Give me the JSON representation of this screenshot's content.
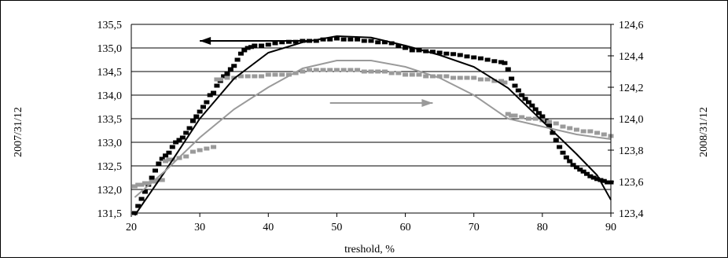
{
  "chart_data": {
    "type": "scatter",
    "xlabel": "treshold, %",
    "ylabel_left": "2007/31/12",
    "ylabel_right": "2008/31/12",
    "xlim": [
      20,
      90
    ],
    "ylim_left": [
      131.5,
      135.5
    ],
    "ylim_right": [
      123.4,
      124.6
    ],
    "x_ticks": [
      "20",
      "30",
      "40",
      "50",
      "60",
      "70",
      "80",
      "90"
    ],
    "y_left_ticks": [
      "131,5",
      "132,0",
      "132,5",
      "133,0",
      "133,5",
      "134,0",
      "134,5",
      "135,0",
      "135,5"
    ],
    "y_right_ticks": [
      "123,4",
      "123,6",
      "123,8",
      "124,0",
      "124,2",
      "124,4",
      "124,6"
    ],
    "grid": "horizontal",
    "colors": {
      "black_series": "#000000",
      "gray_series": "#9a9a9a"
    },
    "series": [
      {
        "axis": "left",
        "color": "#000000",
        "points": [
          [
            20.5,
            131.5
          ],
          [
            21,
            131.65
          ],
          [
            21.5,
            131.8
          ],
          [
            22,
            131.95
          ],
          [
            22.5,
            132.1
          ],
          [
            23,
            132.25
          ],
          [
            23.5,
            132.4
          ],
          [
            24,
            132.55
          ],
          [
            24.5,
            132.65
          ],
          [
            25,
            132.72
          ],
          [
            25.5,
            132.78
          ],
          [
            26,
            132.9
          ],
          [
            26.5,
            133.0
          ],
          [
            27,
            133.05
          ],
          [
            27.5,
            133.1
          ],
          [
            28,
            133.2
          ],
          [
            28.5,
            133.3
          ],
          [
            29,
            133.45
          ],
          [
            29.5,
            133.55
          ],
          [
            30,
            133.65
          ],
          [
            30.5,
            133.75
          ],
          [
            31,
            133.85
          ],
          [
            31.5,
            134.0
          ],
          [
            32,
            134.05
          ],
          [
            32.5,
            134.2
          ],
          [
            33,
            134.3
          ],
          [
            33.5,
            134.4
          ],
          [
            34,
            134.45
          ],
          [
            34.5,
            134.55
          ],
          [
            35,
            134.62
          ],
          [
            35.5,
            134.75
          ],
          [
            36,
            134.88
          ],
          [
            36.5,
            134.95
          ],
          [
            37,
            135.0
          ],
          [
            37.5,
            135.02
          ],
          [
            38,
            135.05
          ],
          [
            39,
            135.05
          ],
          [
            40,
            135.07
          ],
          [
            41,
            135.1
          ],
          [
            42,
            135.12
          ],
          [
            43,
            135.13
          ],
          [
            44,
            135.13
          ],
          [
            45,
            135.15
          ],
          [
            46,
            135.15
          ],
          [
            47,
            135.15
          ],
          [
            48,
            135.18
          ],
          [
            49,
            135.18
          ],
          [
            50,
            135.2
          ],
          [
            51,
            135.18
          ],
          [
            52,
            135.18
          ],
          [
            53,
            135.18
          ],
          [
            54,
            135.15
          ],
          [
            55,
            135.15
          ],
          [
            56,
            135.12
          ],
          [
            57,
            135.12
          ],
          [
            58,
            135.1
          ],
          [
            59,
            135.05
          ],
          [
            60,
            135.0
          ],
          [
            61,
            134.95
          ],
          [
            62,
            134.95
          ],
          [
            63,
            134.93
          ],
          [
            64,
            134.92
          ],
          [
            65,
            134.9
          ],
          [
            66,
            134.88
          ],
          [
            67,
            134.87
          ],
          [
            68,
            134.85
          ],
          [
            69,
            134.82
          ],
          [
            70,
            134.8
          ],
          [
            71,
            134.78
          ],
          [
            72,
            134.75
          ],
          [
            73,
            134.72
          ],
          [
            74,
            134.7
          ],
          [
            74.5,
            134.68
          ],
          [
            75,
            134.55
          ],
          [
            75.5,
            134.35
          ],
          [
            76,
            134.2
          ],
          [
            76.5,
            134.1
          ],
          [
            77,
            134.0
          ],
          [
            77.5,
            133.92
          ],
          [
            78,
            133.85
          ],
          [
            78.5,
            133.78
          ],
          [
            79,
            133.7
          ],
          [
            79.5,
            133.62
          ],
          [
            80,
            133.55
          ],
          [
            80.5,
            133.45
          ],
          [
            81,
            133.35
          ],
          [
            81.5,
            133.2
          ],
          [
            82,
            133.05
          ],
          [
            82.5,
            132.9
          ],
          [
            83,
            132.78
          ],
          [
            83.5,
            132.68
          ],
          [
            84,
            132.6
          ],
          [
            84.5,
            132.52
          ],
          [
            85,
            132.47
          ],
          [
            85.5,
            132.42
          ],
          [
            86,
            132.38
          ],
          [
            86.5,
            132.33
          ],
          [
            87,
            132.28
          ],
          [
            87.5,
            132.25
          ],
          [
            88,
            132.22
          ],
          [
            88.5,
            132.2
          ],
          [
            89,
            132.18
          ],
          [
            89.5,
            132.15
          ],
          [
            90,
            132.15
          ]
        ]
      },
      {
        "axis": "right",
        "color": "#9a9a9a",
        "points": [
          [
            20.5,
            123.57
          ],
          [
            21,
            123.58
          ],
          [
            21.5,
            123.58
          ],
          [
            22,
            123.59
          ],
          [
            22.5,
            123.59
          ],
          [
            23,
            123.6
          ],
          [
            23.5,
            123.6
          ],
          [
            24,
            123.61
          ],
          [
            24.5,
            123.61
          ],
          [
            25,
            123.73
          ],
          [
            25.5,
            123.74
          ],
          [
            26,
            123.74
          ],
          [
            27,
            123.75
          ],
          [
            28,
            123.76
          ],
          [
            29,
            123.79
          ],
          [
            30,
            123.8
          ],
          [
            31,
            123.81
          ],
          [
            32,
            123.82
          ],
          [
            32.5,
            124.25
          ],
          [
            33,
            124.25
          ],
          [
            34,
            124.26
          ],
          [
            35,
            124.26
          ],
          [
            36,
            124.27
          ],
          [
            37,
            124.27
          ],
          [
            38,
            124.27
          ],
          [
            39,
            124.27
          ],
          [
            40,
            124.28
          ],
          [
            41,
            124.28
          ],
          [
            42,
            124.28
          ],
          [
            43,
            124.28
          ],
          [
            44,
            124.29
          ],
          [
            45,
            124.3
          ],
          [
            46,
            124.31
          ],
          [
            47,
            124.31
          ],
          [
            48,
            124.31
          ],
          [
            49,
            124.31
          ],
          [
            50,
            124.31
          ],
          [
            51,
            124.31
          ],
          [
            52,
            124.31
          ],
          [
            53,
            124.31
          ],
          [
            54,
            124.3
          ],
          [
            55,
            124.3
          ],
          [
            56,
            124.3
          ],
          [
            57,
            124.3
          ],
          [
            58,
            124.29
          ],
          [
            59,
            124.29
          ],
          [
            60,
            124.28
          ],
          [
            61,
            124.28
          ],
          [
            62,
            124.28
          ],
          [
            63,
            124.27
          ],
          [
            64,
            124.27
          ],
          [
            65,
            124.27
          ],
          [
            66,
            124.27
          ],
          [
            67,
            124.26
          ],
          [
            68,
            124.26
          ],
          [
            69,
            124.26
          ],
          [
            70,
            124.26
          ],
          [
            71,
            124.25
          ],
          [
            72,
            124.25
          ],
          [
            73,
            124.24
          ],
          [
            74,
            124.24
          ],
          [
            74.5,
            124.23
          ],
          [
            75,
            124.03
          ],
          [
            75.5,
            124.02
          ],
          [
            76,
            124.02
          ],
          [
            77,
            124.01
          ],
          [
            78,
            124.0
          ],
          [
            79,
            124.0
          ],
          [
            80,
            123.99
          ],
          [
            81,
            123.98
          ],
          [
            82,
            123.97
          ],
          [
            83,
            123.95
          ],
          [
            84,
            123.94
          ],
          [
            85,
            123.93
          ],
          [
            86,
            123.92
          ],
          [
            87,
            123.92
          ],
          [
            88,
            123.91
          ],
          [
            89,
            123.9
          ],
          [
            90,
            123.89
          ]
        ]
      }
    ],
    "trendlines": [
      {
        "axis": "left",
        "color": "#000000",
        "points": [
          [
            20.5,
            131.45
          ],
          [
            25,
            132.4
          ],
          [
            30,
            133.5
          ],
          [
            35,
            134.35
          ],
          [
            40,
            134.9
          ],
          [
            45,
            135.12
          ],
          [
            50,
            135.25
          ],
          [
            55,
            135.22
          ],
          [
            60,
            135.05
          ],
          [
            65,
            134.85
          ],
          [
            70,
            134.6
          ],
          [
            75,
            134.15
          ],
          [
            80,
            133.45
          ],
          [
            85,
            132.75
          ],
          [
            88,
            132.3
          ],
          [
            90,
            131.78
          ]
        ]
      },
      {
        "axis": "right",
        "color": "#9a9a9a",
        "points": [
          [
            20.5,
            123.5
          ],
          [
            25,
            123.67
          ],
          [
            30,
            123.88
          ],
          [
            35,
            124.06
          ],
          [
            40,
            124.2
          ],
          [
            45,
            124.32
          ],
          [
            50,
            124.37
          ],
          [
            55,
            124.37
          ],
          [
            60,
            124.33
          ],
          [
            65,
            124.26
          ],
          [
            70,
            124.15
          ],
          [
            75,
            124.0
          ],
          [
            80,
            123.95
          ],
          [
            85,
            123.9
          ],
          [
            90,
            123.87
          ]
        ]
      }
    ],
    "annotations": [
      {
        "type": "arrow",
        "direction": "left",
        "axis": "left",
        "x_from": 46,
        "x_to": 30,
        "y": 135.15,
        "color": "#000000"
      },
      {
        "type": "arrow",
        "direction": "right",
        "axis": "right",
        "x_from": 49,
        "x_to": 64,
        "y": 124.1,
        "color": "#9a9a9a"
      }
    ]
  }
}
